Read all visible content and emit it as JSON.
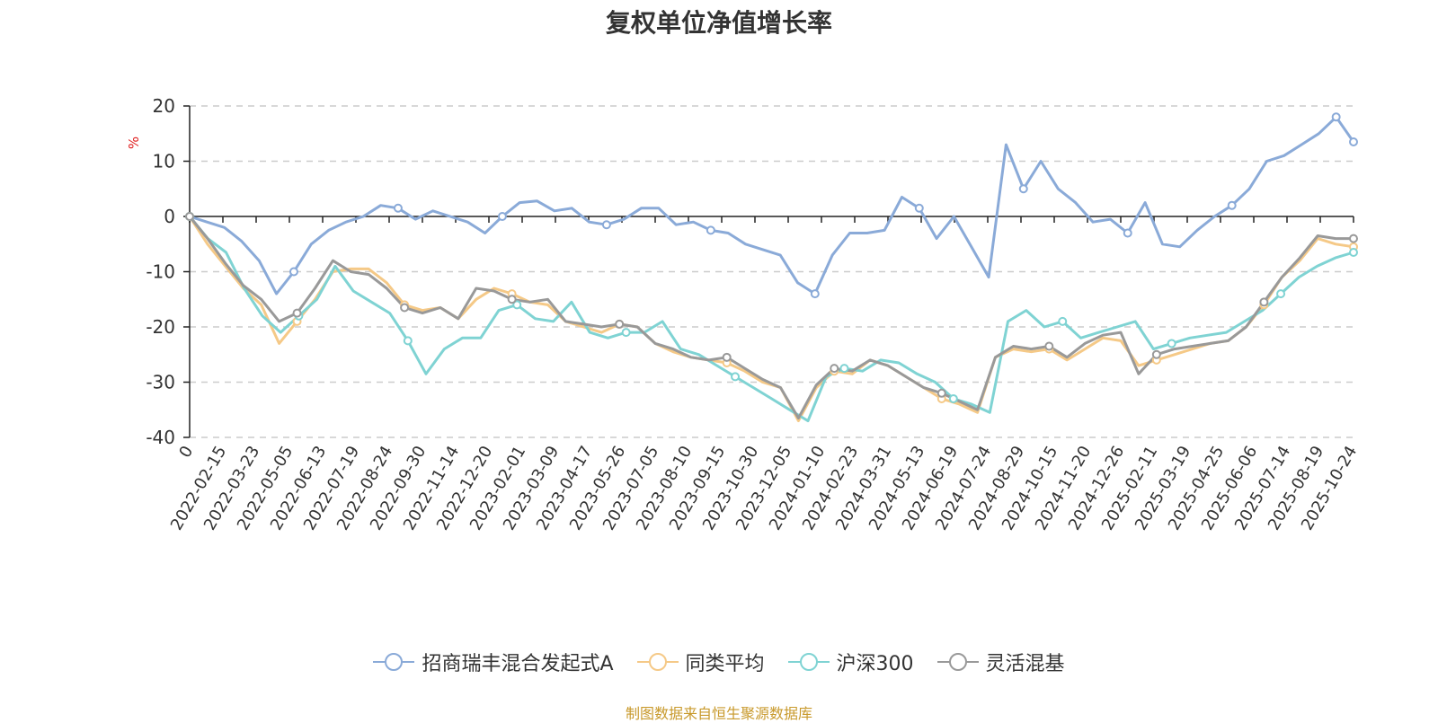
{
  "title": "复权单位净值增长率",
  "unit": "%",
  "source": "制图数据来自恒生聚源数据库",
  "colors": {
    "source": "#c8992b",
    "unit": "#e02020",
    "grid": "#cccccc",
    "axis": "#222222"
  },
  "chart_data": {
    "type": "line",
    "title": "复权单位净值增长率",
    "ylabel": "%",
    "ylim": [
      -40,
      20
    ],
    "yticks": [
      20,
      10,
      0,
      -10,
      -20,
      -30,
      -40
    ],
    "grid": true,
    "legend_position": "bottom",
    "xticks": [
      "0",
      "2022-02-15",
      "2022-03-23",
      "2022-05-05",
      "2022-06-13",
      "2022-07-19",
      "2022-08-24",
      "2022-09-30",
      "2022-11-14",
      "2022-12-20",
      "2023-02-01",
      "2023-03-09",
      "2023-04-17",
      "2023-05-26",
      "2023-07-05",
      "2023-08-10",
      "2023-09-15",
      "2023-10-30",
      "2023-12-05",
      "2024-01-10",
      "2024-02-23",
      "2024-03-31",
      "2024-05-13",
      "2024-06-19",
      "2024-07-24",
      "2024-08-29",
      "2024-10-15",
      "2024-11-20",
      "2024-12-26",
      "2025-02-11",
      "2025-03-19",
      "2025-04-25",
      "2025-06-06",
      "2025-07-14",
      "2025-08-19",
      "2025-10-24"
    ],
    "series": [
      {
        "name": "招商瑞丰混合发起式A",
        "color": "#8aaad8",
        "values": [
          0,
          -1,
          -2,
          -4.5,
          -8,
          -14,
          -10,
          -5,
          -2.5,
          -1,
          0,
          2,
          1.5,
          -0.5,
          1,
          0,
          -1,
          -3,
          0,
          2.5,
          2.8,
          1,
          1.5,
          -1,
          -1.5,
          -0.5,
          1.5,
          1.5,
          -1.5,
          -1,
          -2.5,
          -3,
          -5,
          -6,
          -7,
          -12,
          -14,
          -7,
          -3,
          -3,
          -2.5,
          3.5,
          1.5,
          -4,
          0,
          -5.5,
          -11,
          13,
          5,
          10,
          5,
          2.5,
          -1,
          -0.5,
          -3,
          2.5,
          -5,
          -5.5,
          -2.5,
          0,
          2,
          5,
          10,
          11,
          13,
          15,
          18,
          13.5
        ]
      },
      {
        "name": "同类平均",
        "color": "#f5c987",
        "values": [
          0,
          -5,
          -9,
          -13,
          -16,
          -23,
          -19,
          -15,
          -10,
          -9.5,
          -9.5,
          -12,
          -16,
          -17,
          -16.5,
          -18.5,
          -15,
          -13,
          -14,
          -15.5,
          -16,
          -19,
          -20,
          -21,
          -19.5,
          -20,
          -23,
          -24.5,
          -25.5,
          -26,
          -26.5,
          -28,
          -30,
          -31,
          -37,
          -31,
          -28,
          -28.5,
          -26,
          -27,
          -29,
          -31,
          -33,
          -34,
          -35.5,
          -25.5,
          -24,
          -24.5,
          -24,
          -26,
          -24,
          -22,
          -22.5,
          -27,
          -26,
          -25,
          -24,
          -23,
          -22.5,
          -20,
          -16,
          -11,
          -8,
          -4,
          -5,
          -5.5
        ]
      },
      {
        "name": "沪深300",
        "color": "#7fd3d3",
        "values": [
          0,
          -4,
          -6.5,
          -13,
          -18,
          -21,
          -18,
          -15,
          -9,
          -13.5,
          -15.5,
          -17.5,
          -22.5,
          -28.5,
          -24,
          -22,
          -22,
          -17,
          -16,
          -18.5,
          -19,
          -15.5,
          -21,
          -22,
          -21,
          -21,
          -19,
          -24,
          -25,
          -27,
          -29,
          -31,
          -33,
          -35,
          -37,
          -29,
          -27.5,
          -28,
          -26,
          -26.5,
          -28.5,
          -30,
          -33,
          -34,
          -35.5,
          -19,
          -17,
          -20,
          -19,
          -22,
          -21,
          -20,
          -19,
          -24,
          -23,
          -22,
          -21.5,
          -21,
          -19,
          -17,
          -14,
          -11,
          -9,
          -7.5,
          -6.5
        ]
      },
      {
        "name": "灵活混基",
        "color": "#999999",
        "values": [
          0,
          -4,
          -8.5,
          -12.5,
          -15,
          -19,
          -17.5,
          -13,
          -8,
          -10,
          -10.5,
          -13,
          -16.5,
          -17.5,
          -16.5,
          -18.5,
          -13,
          -13.5,
          -15,
          -15.5,
          -15,
          -19,
          -19.5,
          -20,
          -19.5,
          -20,
          -23,
          -24,
          -25.5,
          -26,
          -25.5,
          -27.5,
          -29.5,
          -31,
          -36.5,
          -30.5,
          -27.5,
          -28,
          -26,
          -27,
          -29,
          -31,
          -32,
          -33.5,
          -35,
          -25.5,
          -23.5,
          -24,
          -23.5,
          -25.5,
          -23,
          -21.5,
          -21,
          -28.5,
          -25,
          -24,
          -23.5,
          -23,
          -22.5,
          -20,
          -15.5,
          -11,
          -7.5,
          -3.5,
          -4,
          -4
        ]
      }
    ]
  }
}
